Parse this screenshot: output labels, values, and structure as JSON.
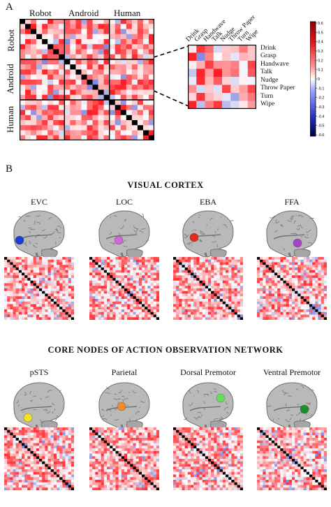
{
  "panel_a": {
    "letter": "A",
    "groups": [
      "Robot",
      "Android",
      "Human"
    ],
    "zoom_columns": [
      "Drink",
      "Grasp",
      "Handwave",
      "Talk",
      "Nudge",
      "Throw Paper",
      "Turn",
      "Wipe"
    ],
    "zoom_rows": [
      "Drink",
      "Grasp",
      "Handwave",
      "Talk",
      "Nudge",
      "Throw Paper",
      "Turn",
      "Wipe"
    ],
    "colorbar_ticks": [
      "0.6",
      "0.5",
      "0.4",
      "0.3",
      "0.2",
      "0.1",
      "0",
      "-0.1",
      "-0.2",
      "-0.3",
      "-0.4",
      "-0.5",
      "-0.6"
    ],
    "colorbar_range": [
      -0.6,
      0.6
    ],
    "colors": {
      "positive": "#e8141b",
      "negative": "#2a35c8",
      "zero": "#ffffff",
      "diagonal": "#000000"
    }
  },
  "panel_b": {
    "letter": "B",
    "visual_title": "VISUAL CORTEX",
    "visual_rois": [
      {
        "label": "EVC",
        "color": "#1a3fd6"
      },
      {
        "label": "LOC",
        "color": "#d067d6"
      },
      {
        "label": "EBA",
        "color": "#e62a1f"
      },
      {
        "label": "FFA",
        "color": "#a845c4"
      }
    ],
    "aon_title": "CORE NODES OF ACTION OBSERVATION NETWORK",
    "aon_rois": [
      {
        "label": "pSTS",
        "color": "#f2e11c"
      },
      {
        "label": "Parietal",
        "color": "#f08a2d"
      },
      {
        "label": "Dorsal Premotor",
        "color": "#66e05a"
      },
      {
        "label": "Ventral Premotor",
        "color": "#1f8f2c"
      }
    ]
  }
}
